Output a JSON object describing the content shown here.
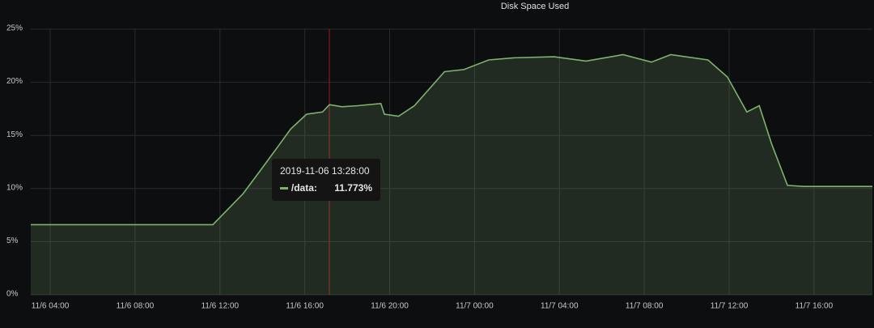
{
  "chart_data": {
    "type": "area",
    "title": "Disk Space Used",
    "x": [
      "11/6 03:05",
      "11/6 11:40",
      "11/6 13:05",
      "11/6 13:50",
      "11/6 14:45",
      "11/6 15:20",
      "11/6 16:05",
      "11/6 16:50",
      "11/6 17:10",
      "11/6 17:45",
      "11/6 18:30",
      "11/6 19:35",
      "11/6 19:45",
      "11/6 20:25",
      "11/6 21:10",
      "11/6 22:35",
      "11/6 23:30",
      "11/7 00:40",
      "11/7 01:50",
      "11/7 03:45",
      "11/7 05:15",
      "11/7 07:00",
      "11/7 08:20",
      "11/7 09:15",
      "11/7 11:00",
      "11/7 11:55",
      "11/7 12:50",
      "11/7 13:25",
      "11/7 14:00",
      "11/7 14:45",
      "11/7 15:30",
      "11/7 18:45"
    ],
    "series": [
      {
        "color": "#7eb26d",
        "values": [
          6.6,
          6.6,
          9.5,
          11.5,
          14.0,
          15.6,
          17.0,
          17.2,
          17.9,
          17.7,
          17.8,
          18.0,
          17.0,
          16.8,
          17.8,
          21.0,
          21.2,
          22.1,
          22.3,
          22.4,
          22.0,
          22.6,
          21.9,
          22.6,
          22.1,
          20.5,
          17.2,
          17.8,
          14.2,
          10.3,
          10.2,
          10.2
        ]
      }
    ],
    "xlim": [
      "11/6 03:05",
      "11/7 18:45"
    ],
    "xticks": [
      "11/6 04:00",
      "11/6 08:00",
      "11/6 12:00",
      "11/6 16:00",
      "11/6 20:00",
      "11/7 00:00",
      "11/7 04:00",
      "11/7 08:00",
      "11/7 12:00",
      "11/7 16:00"
    ],
    "ylim": [
      0,
      25
    ],
    "yticks": [
      {
        "value": 0,
        "label": "0%"
      },
      {
        "value": 5,
        "label": "5%"
      },
      {
        "value": 10,
        "label": "10%"
      },
      {
        "value": 15,
        "label": "15%"
      },
      {
        "value": 20,
        "label": "20%"
      },
      {
        "value": 25,
        "label": "25%"
      }
    ],
    "grid": true,
    "tooltip": {
      "time": "2019-11-06 13:28:00",
      "label": "/data:",
      "value": 11.773,
      "value_label": "11.773%"
    }
  }
}
